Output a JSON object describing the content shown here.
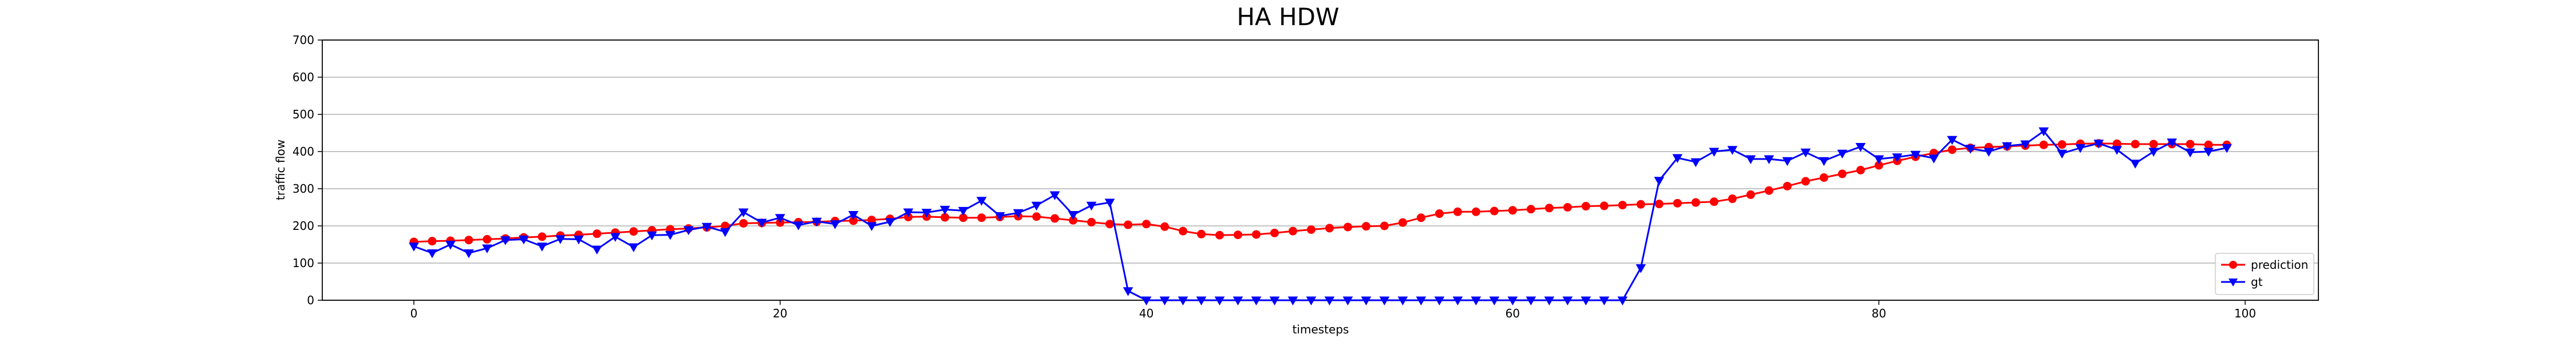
{
  "chart_data": {
    "type": "line",
    "title": "HA HDW",
    "xlabel": "timesteps",
    "ylabel": "traffic flow",
    "xlim": [
      -5,
      104
    ],
    "ylim": [
      0,
      700
    ],
    "xticks": [
      "0",
      "20",
      "40",
      "60",
      "80",
      "100"
    ],
    "yticks": [
      "0",
      "100",
      "200",
      "300",
      "400",
      "500",
      "600",
      "700"
    ],
    "grid": "horizontal",
    "legend_position": "lower-right",
    "x": [
      0,
      1,
      2,
      3,
      4,
      5,
      6,
      7,
      8,
      9,
      10,
      11,
      12,
      13,
      14,
      15,
      16,
      17,
      18,
      19,
      20,
      21,
      22,
      23,
      24,
      25,
      26,
      27,
      28,
      29,
      30,
      31,
      32,
      33,
      34,
      35,
      36,
      37,
      38,
      39,
      40,
      41,
      42,
      43,
      44,
      45,
      46,
      47,
      48,
      49,
      50,
      51,
      52,
      53,
      54,
      55,
      56,
      57,
      58,
      59,
      60,
      61,
      62,
      63,
      64,
      65,
      66,
      67,
      68,
      69,
      70,
      71,
      72,
      73,
      74,
      75,
      76,
      77,
      78,
      79,
      80,
      81,
      82,
      83,
      84,
      85,
      86,
      87,
      88,
      89,
      90,
      91,
      92,
      93,
      94,
      95,
      96,
      97,
      98,
      99
    ],
    "series": [
      {
        "name": "prediction",
        "color": "#ff0000",
        "marker": "circle",
        "values": [
          157,
          159,
          160,
          162,
          164,
          166,
          169,
          171,
          174,
          176,
          179,
          182,
          185,
          188,
          191,
          193,
          196,
          200,
          207,
          208,
          209,
          210,
          211,
          213,
          214,
          216,
          219,
          224,
          225,
          223,
          222,
          222,
          224,
          226,
          225,
          220,
          215,
          210,
          205,
          203,
          205,
          198,
          186,
          178,
          175,
          176,
          177,
          181,
          186,
          190,
          194,
          197,
          199,
          200,
          209,
          222,
          233,
          238,
          238,
          240,
          242,
          245,
          248,
          250,
          253,
          254,
          256,
          258,
          259,
          261,
          263,
          265,
          273,
          284,
          295,
          307,
          320,
          330,
          340,
          350,
          363,
          375,
          386,
          396,
          405,
          410,
          412,
          414,
          416,
          418,
          419,
          421,
          422,
          421,
          420,
          420,
          420,
          420,
          418,
          418
        ]
      },
      {
        "name": "gt",
        "color": "#0000ff",
        "marker": "triangle-down",
        "values": [
          145,
          127,
          150,
          127,
          140,
          162,
          164,
          145,
          165,
          164,
          137,
          171,
          143,
          175,
          176,
          189,
          198,
          184,
          237,
          209,
          222,
          202,
          212,
          205,
          230,
          200,
          211,
          237,
          236,
          244,
          241,
          268,
          227,
          235,
          255,
          283,
          230,
          255,
          263,
          25,
          0,
          0,
          0,
          0,
          0,
          0,
          0,
          0,
          0,
          0,
          0,
          0,
          0,
          0,
          0,
          0,
          0,
          0,
          0,
          0,
          0,
          0,
          0,
          0,
          0,
          0,
          0,
          87,
          322,
          383,
          372,
          400,
          405,
          380,
          380,
          375,
          398,
          375,
          395,
          413,
          380,
          385,
          392,
          382,
          432,
          408,
          400,
          415,
          420,
          455,
          395,
          410,
          422,
          405,
          368,
          400,
          425,
          398,
          400,
          410
        ]
      }
    ]
  }
}
